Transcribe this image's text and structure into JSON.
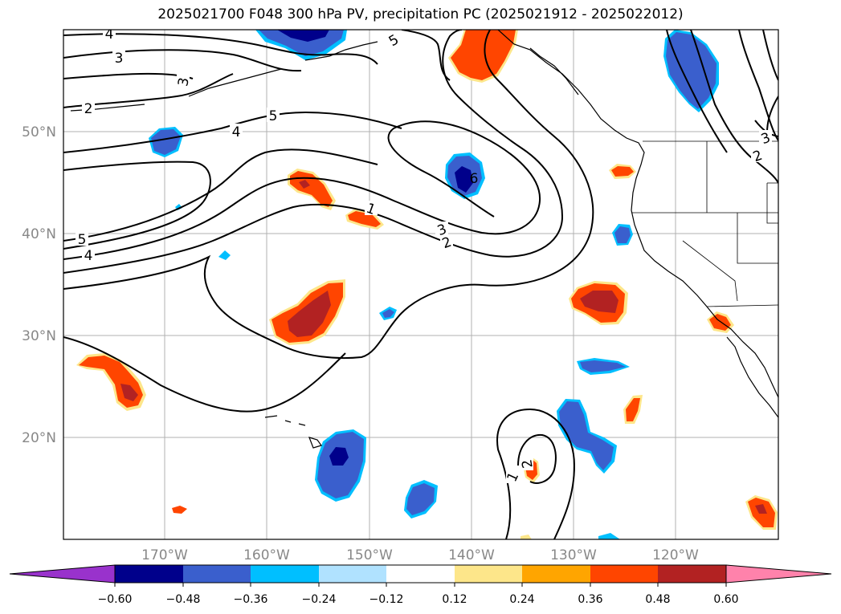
{
  "title": "2025021700 F048 300 hPa PV, precipitation PC (2025021912 - 2025022012)",
  "map": {
    "projection": "PlateCarree",
    "lon_range": [
      -180,
      -110
    ],
    "lat_range": [
      10,
      60
    ],
    "gridlines": true,
    "lon_labels": [
      "170°W",
      "160°W",
      "150°W",
      "140°W",
      "130°W",
      "120°W"
    ],
    "lat_labels": [
      "50°N",
      "40°N",
      "30°N",
      "20°N"
    ],
    "contour_variable": "300 hPa PV",
    "shaded_variable": "precipitation PC",
    "contour_labels": [
      "4",
      "3",
      "3",
      "2",
      "5",
      "4",
      "5",
      "4",
      "1",
      "2",
      "3",
      "6",
      "5",
      "2",
      "3",
      "1",
      "2"
    ]
  },
  "colorbar": {
    "extend": "both",
    "ticks": [
      "−0.60",
      "−0.48",
      "−0.36",
      "−0.24",
      "−0.12",
      "0.12",
      "0.24",
      "0.36",
      "0.48",
      "0.60"
    ],
    "colors": [
      "#9932cc",
      "#00008b",
      "#3a5fcd",
      "#00bfff",
      "#b0e2ff",
      "#ffffff",
      "#fde68a",
      "#ffa500",
      "#ff4500",
      "#b22222",
      "#ff82ab"
    ]
  }
}
